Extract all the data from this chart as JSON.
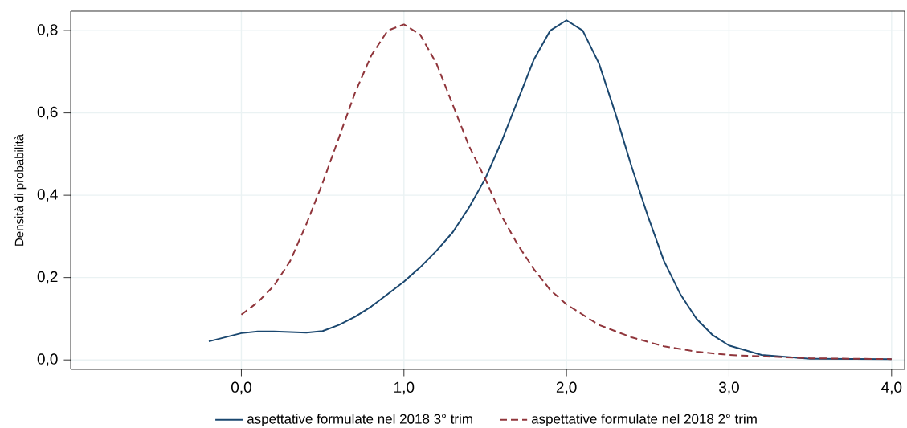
{
  "chart_data": {
    "type": "line",
    "ylabel": "Densità di probabilità",
    "xlim": [
      -1.05,
      4.08
    ],
    "ylim": [
      -0.023,
      0.847
    ],
    "xticks": [
      {
        "value": 0,
        "label": "0,0"
      },
      {
        "value": 1,
        "label": "1,0"
      },
      {
        "value": 2,
        "label": "2,0"
      },
      {
        "value": 3,
        "label": "3,0"
      },
      {
        "value": 4,
        "label": "4,0"
      }
    ],
    "yticks": [
      {
        "value": 0,
        "label": "0,0"
      },
      {
        "value": 0.2,
        "label": "0,2"
      },
      {
        "value": 0.4,
        "label": "0,4"
      },
      {
        "value": 0.6,
        "label": "0,6"
      },
      {
        "value": 0.8,
        "label": "0,8"
      }
    ],
    "grid": true,
    "legend": "bottom",
    "marker": "none",
    "series": [
      {
        "name": "aspettative formulate nel 2018 3° trim",
        "color": "#1a476f",
        "line_style": "solid",
        "x": [
          -0.2,
          0,
          0.1,
          0.2,
          0.4,
          0.5,
          0.6,
          0.7,
          0.8,
          0.9,
          1.0,
          1.1,
          1.2,
          1.3,
          1.4,
          1.5,
          1.6,
          1.7,
          1.8,
          1.9,
          2.0,
          2.1,
          2.2,
          2.3,
          2.4,
          2.5,
          2.6,
          2.7,
          2.8,
          2.9,
          3.0,
          3.2,
          3.5,
          4.0
        ],
        "values": [
          0.045,
          0.065,
          0.069,
          0.069,
          0.066,
          0.07,
          0.085,
          0.105,
          0.13,
          0.16,
          0.19,
          0.225,
          0.265,
          0.31,
          0.37,
          0.44,
          0.53,
          0.63,
          0.73,
          0.8,
          0.825,
          0.8,
          0.72,
          0.6,
          0.47,
          0.35,
          0.24,
          0.16,
          0.1,
          0.06,
          0.035,
          0.012,
          0.003,
          0.002
        ]
      },
      {
        "name": "aspettative formulate nel 2018 2° trim",
        "color": "#90353b",
        "line_style": "dashed",
        "x": [
          0,
          0.1,
          0.2,
          0.3,
          0.4,
          0.5,
          0.6,
          0.7,
          0.8,
          0.9,
          1.0,
          1.1,
          1.2,
          1.3,
          1.4,
          1.5,
          1.6,
          1.7,
          1.8,
          1.9,
          2.0,
          2.2,
          2.4,
          2.6,
          2.8,
          3.0,
          3.5,
          4.0
        ],
        "values": [
          0.11,
          0.14,
          0.18,
          0.24,
          0.33,
          0.43,
          0.54,
          0.65,
          0.74,
          0.8,
          0.815,
          0.79,
          0.72,
          0.62,
          0.52,
          0.44,
          0.35,
          0.28,
          0.22,
          0.17,
          0.135,
          0.085,
          0.055,
          0.033,
          0.02,
          0.012,
          0.004,
          0.002
        ]
      }
    ]
  }
}
